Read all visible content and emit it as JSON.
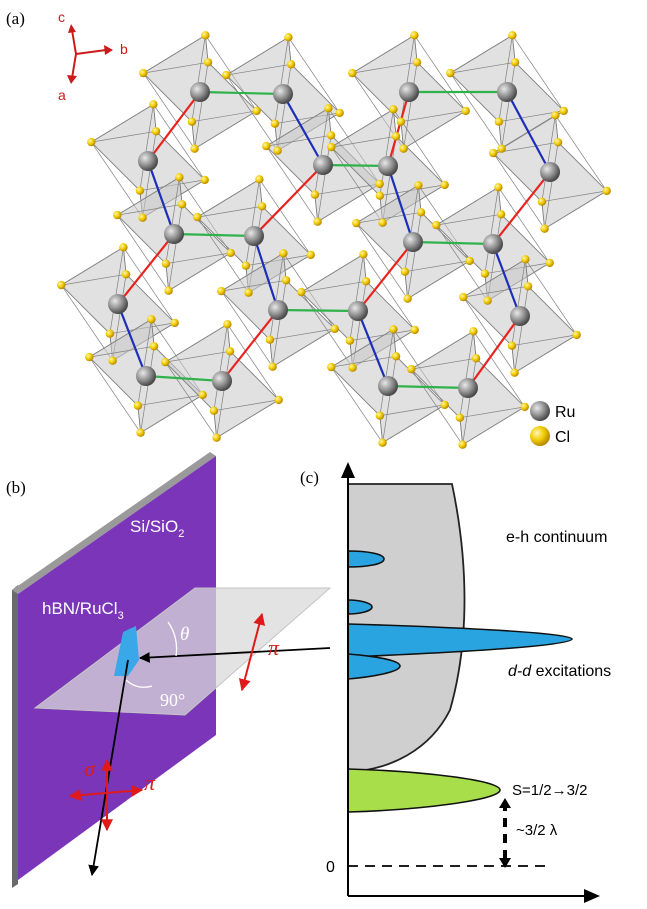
{
  "panel_a": {
    "label": "(a)",
    "axes": {
      "c": "c",
      "b": "b",
      "a": "a"
    },
    "legend": [
      {
        "label": "Ru",
        "color": "#8f8f8f"
      },
      {
        "label": "Cl",
        "color": "#f2cc00"
      }
    ],
    "bond_colors": {
      "red": "#e8231e",
      "blue": "#1d2fb8",
      "green": "#2fb24a"
    },
    "octahedron_fill": "#c8c8c8"
  },
  "panel_b": {
    "label": "(b)",
    "substrate_label": "Si/SiO",
    "substrate_sub": "2",
    "sample_label": "hBN/RuCl",
    "sample_sub": "3",
    "theta": "θ",
    "angle_label": "90°",
    "pi_top": "π",
    "sigma": "σ",
    "pi_bottom": "π",
    "substrate_color": "#7a35b8",
    "arrow_color": "#e01a1a"
  },
  "panel_c": {
    "label": "(c)",
    "continuum_label": "e-h continuum",
    "dd_italic": "d-d",
    "dd_rest": " excitations",
    "spin_label": "S=1/2→3/2",
    "gap_label": "~3/2 λ",
    "zero_label": "0",
    "dd_color": "#2aa4e0",
    "spin_color": "#a8de4a",
    "continuum_color": "#cfcfcf"
  }
}
